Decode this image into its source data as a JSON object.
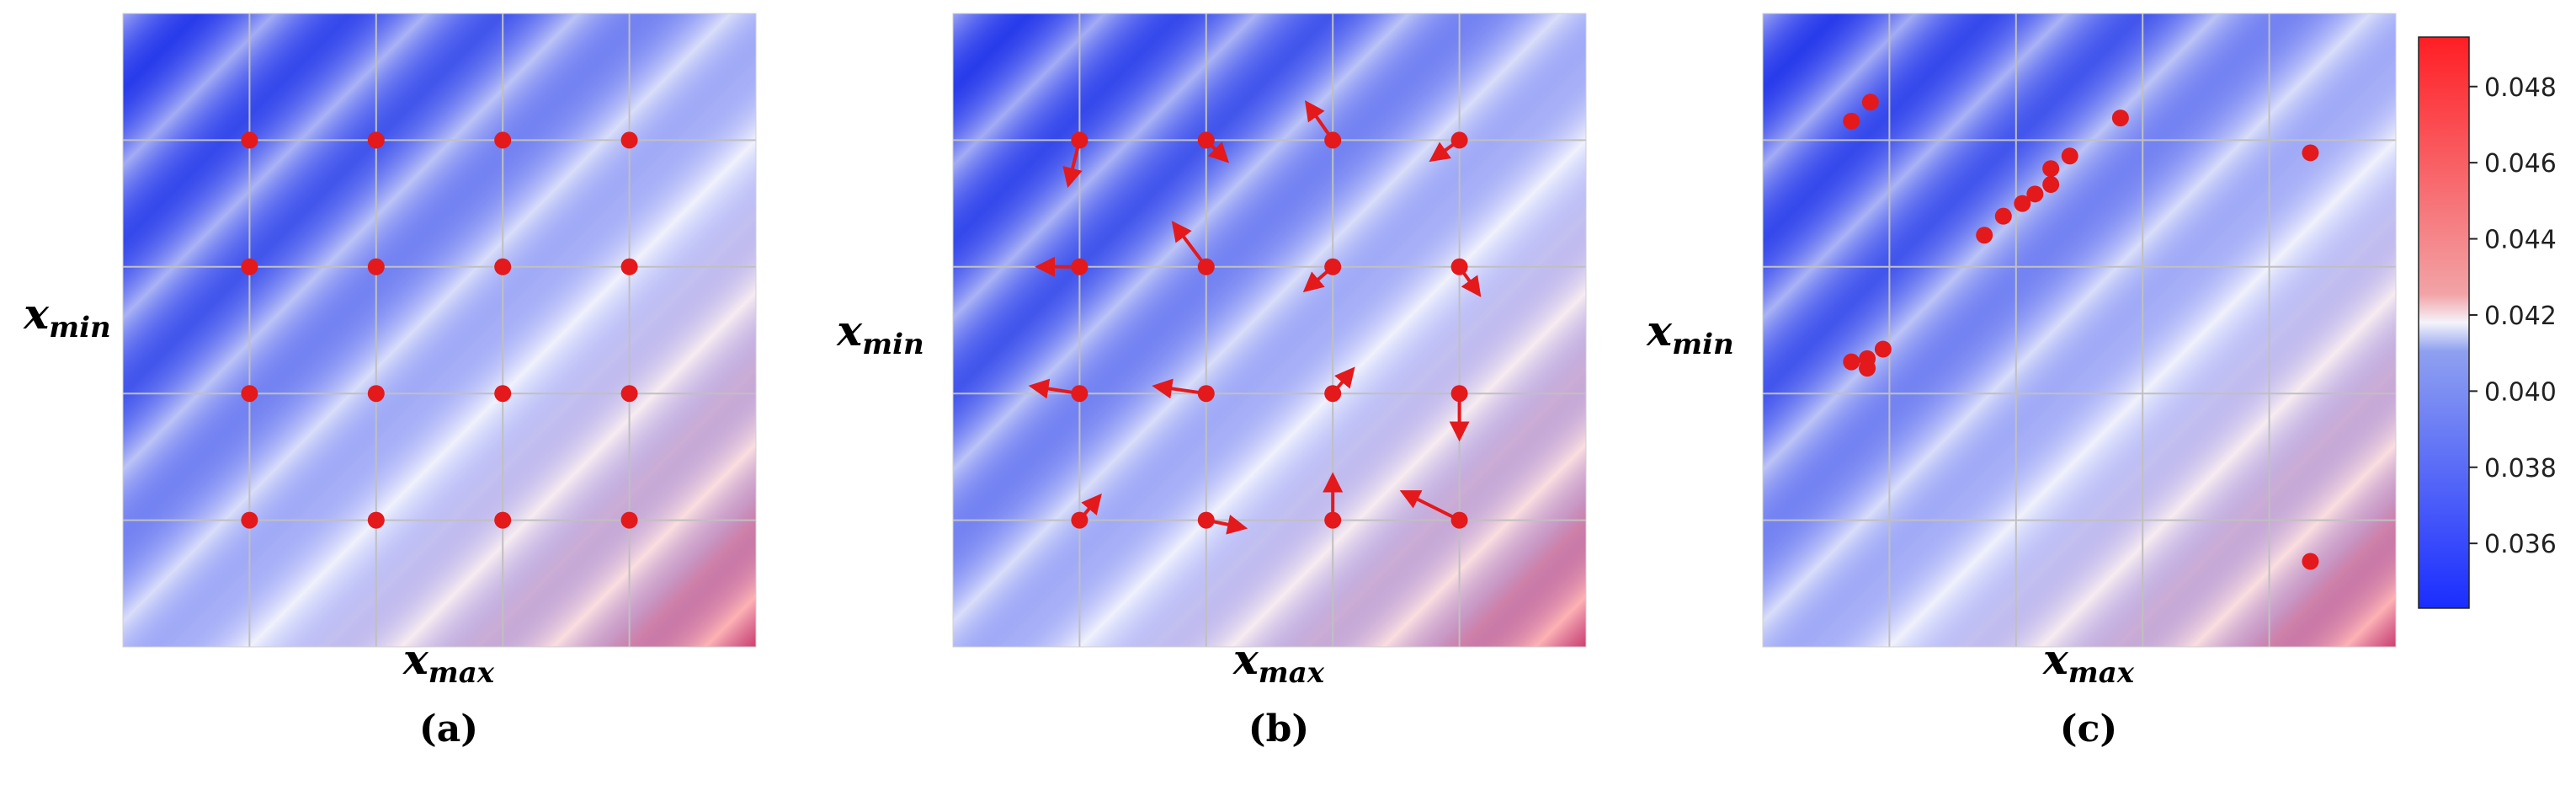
{
  "chart_data": [
    {
      "type": "heatmap",
      "panel_label": "(a)",
      "xlabel_base": "x",
      "xlabel_sub": "max",
      "ylabel_base": "x",
      "ylabel_sub": "min",
      "grid": true,
      "points": [
        {
          "x": 0.2,
          "y": 0.2
        },
        {
          "x": 0.4,
          "y": 0.2
        },
        {
          "x": 0.6,
          "y": 0.2
        },
        {
          "x": 0.8,
          "y": 0.2
        },
        {
          "x": 0.2,
          "y": 0.4
        },
        {
          "x": 0.4,
          "y": 0.4
        },
        {
          "x": 0.6,
          "y": 0.4
        },
        {
          "x": 0.8,
          "y": 0.4
        },
        {
          "x": 0.2,
          "y": 0.6
        },
        {
          "x": 0.4,
          "y": 0.6
        },
        {
          "x": 0.6,
          "y": 0.6
        },
        {
          "x": 0.8,
          "y": 0.6
        },
        {
          "x": 0.2,
          "y": 0.8
        },
        {
          "x": 0.4,
          "y": 0.8
        },
        {
          "x": 0.6,
          "y": 0.8
        },
        {
          "x": 0.8,
          "y": 0.8
        }
      ]
    },
    {
      "type": "heatmap",
      "panel_label": "(b)",
      "xlabel_base": "x",
      "xlabel_sub": "max",
      "ylabel_base": "x",
      "ylabel_sub": "min",
      "grid": true,
      "points": [
        {
          "x": 0.2,
          "y": 0.2,
          "dx": -0.015,
          "dy": 0.06
        },
        {
          "x": 0.4,
          "y": 0.2,
          "dx": 0.025,
          "dy": 0.025
        },
        {
          "x": 0.6,
          "y": 0.2,
          "dx": -0.035,
          "dy": -0.05
        },
        {
          "x": 0.8,
          "y": 0.2,
          "dx": -0.035,
          "dy": 0.025
        },
        {
          "x": 0.2,
          "y": 0.4,
          "dx": -0.055,
          "dy": 0.0
        },
        {
          "x": 0.4,
          "y": 0.4,
          "dx": -0.045,
          "dy": -0.06
        },
        {
          "x": 0.6,
          "y": 0.4,
          "dx": -0.035,
          "dy": 0.03
        },
        {
          "x": 0.8,
          "y": 0.4,
          "dx": 0.025,
          "dy": 0.035
        },
        {
          "x": 0.2,
          "y": 0.6,
          "dx": -0.065,
          "dy": -0.01
        },
        {
          "x": 0.4,
          "y": 0.6,
          "dx": -0.07,
          "dy": -0.01
        },
        {
          "x": 0.6,
          "y": 0.6,
          "dx": 0.025,
          "dy": -0.03
        },
        {
          "x": 0.8,
          "y": 0.6,
          "dx": 0.0,
          "dy": 0.06
        },
        {
          "x": 0.2,
          "y": 0.8,
          "dx": 0.025,
          "dy": -0.03
        },
        {
          "x": 0.4,
          "y": 0.8,
          "dx": 0.05,
          "dy": 0.01
        },
        {
          "x": 0.6,
          "y": 0.8,
          "dx": 0.0,
          "dy": -0.06
        },
        {
          "x": 0.8,
          "y": 0.8,
          "dx": -0.08,
          "dy": -0.04
        }
      ]
    },
    {
      "type": "heatmap",
      "panel_label": "(c)",
      "xlabel_base": "x",
      "xlabel_sub": "max",
      "ylabel_base": "x",
      "ylabel_sub": "min",
      "grid": true,
      "points": [
        {
          "x": 0.14,
          "y": 0.17
        },
        {
          "x": 0.17,
          "y": 0.14
        },
        {
          "x": 0.14,
          "y": 0.55
        },
        {
          "x": 0.165,
          "y": 0.545
        },
        {
          "x": 0.165,
          "y": 0.56
        },
        {
          "x": 0.19,
          "y": 0.53
        },
        {
          "x": 0.35,
          "y": 0.35
        },
        {
          "x": 0.38,
          "y": 0.32
        },
        {
          "x": 0.41,
          "y": 0.3
        },
        {
          "x": 0.43,
          "y": 0.285
        },
        {
          "x": 0.455,
          "y": 0.27
        },
        {
          "x": 0.455,
          "y": 0.245
        },
        {
          "x": 0.485,
          "y": 0.225
        },
        {
          "x": 0.565,
          "y": 0.165
        },
        {
          "x": 0.865,
          "y": 0.22
        },
        {
          "x": 0.865,
          "y": 0.865
        }
      ]
    }
  ],
  "colorbar": {
    "min": 0.0343,
    "max": 0.0493,
    "tick_values": [
      0.036,
      0.038,
      0.04,
      0.042,
      0.044,
      0.046,
      0.048
    ],
    "tick_labels": [
      "0.036",
      "0.038",
      "0.040",
      "0.042",
      "0.044",
      "0.046",
      "0.048"
    ],
    "colormap": "bwr"
  },
  "colors": {
    "marker": "#e3191c",
    "grid": "#c0c0c0",
    "cold": "#1a2dff",
    "neutral": "#f4f4fb",
    "hot": "#ff1e24"
  }
}
